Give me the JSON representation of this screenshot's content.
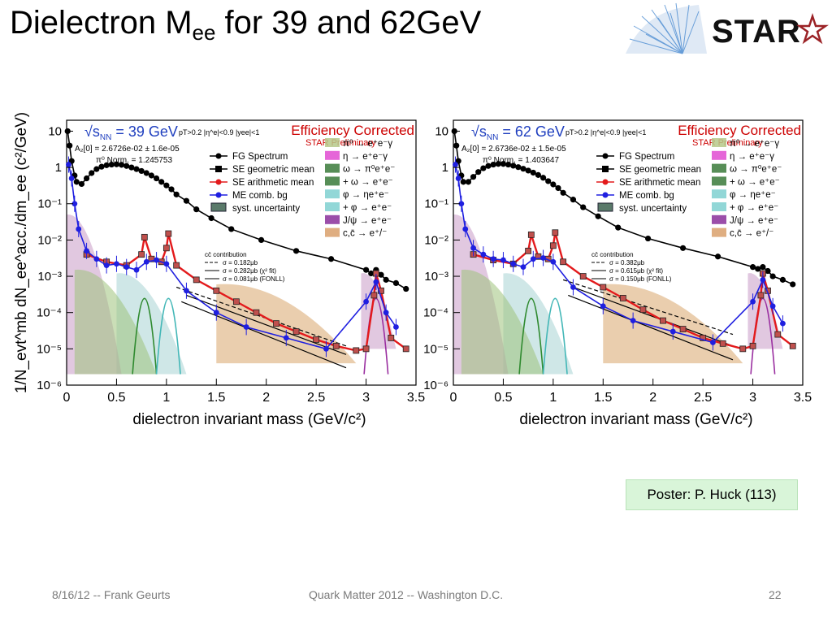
{
  "slide": {
    "title_main": "Dielectron M",
    "title_sub": "ee",
    "title_tail": " for 39 and 62GeV",
    "logo_text": "STAR",
    "poster": "Poster: P. Huck (113)",
    "footer_left": "8/16/12 -- Frank Geurts",
    "footer_center": "Quark Matter 2012 -- Washington D.C.",
    "footer_right": "22"
  },
  "colors": {
    "fg": "#000000",
    "se_arith": "#e31a1c",
    "me": "#1f1fe0",
    "efficiency_title": "#cc0000",
    "star_red": "#9b2226"
  },
  "chart_data": [
    {
      "type": "line",
      "energy_label": "√s",
      "energy_sub": "NN",
      "energy_value": " = 39 GeV",
      "cuts": "pT>0.2  |η^e|<0.9  |yee|<1",
      "fit_line1": "A₂[0] = 2.6726e-02 ± 1.6e-05",
      "fit_line2": "π⁰ Norm. = 1.245753",
      "corner_title": "Efficiency Corrected",
      "prelim": "STAR Preliminary",
      "xlabel": "dielectron invariant mass (GeV/c²)",
      "ylabel": "1/N_evt^mb dN_ee^acc./dm_ee (c²/GeV)",
      "xlim": [
        0,
        3.5
      ],
      "ylim": [
        1e-06,
        20
      ],
      "log_y": true,
      "x_ticks": [
        "0",
        "0.5",
        "1",
        "1.5",
        "2",
        "2.5",
        "3",
        "3.5"
      ],
      "y_ticks": [
        "10",
        "1",
        "10⁻¹",
        "10⁻²",
        "10⁻³",
        "10⁻⁴",
        "10⁻⁵",
        "10⁻⁶"
      ],
      "legend_left": [
        "FG Spectrum",
        "SE geometric mean",
        "SE arithmetic mean",
        "ME comb. bg",
        "syst. uncertainty"
      ],
      "legend_right": [
        "π⁰ → e⁺e⁻γ",
        "η → e⁺e⁻γ",
        "ω → π⁰e⁺e⁻",
        "+ ω → e⁺e⁻",
        "φ → ηe⁺e⁻",
        "+ φ → e⁺e⁻",
        "J/ψ → e⁺e⁻",
        "c,c̄ → e⁺/⁻"
      ],
      "ccbar_title": "cc̄ contribution",
      "ccbar_lines": [
        "σ = 0.182μb",
        "σ = 0.282μb (χ² fit)",
        "σ = 0.081μb (FONLL)"
      ],
      "series": [
        {
          "name": "FG Spectrum",
          "x": [
            0.01,
            0.03,
            0.05,
            0.08,
            0.1,
            0.15,
            0.2,
            0.25,
            0.3,
            0.35,
            0.4,
            0.45,
            0.5,
            0.55,
            0.6,
            0.65,
            0.7,
            0.75,
            0.8,
            0.85,
            0.9,
            0.95,
            1.0,
            1.05,
            1.1,
            1.2,
            1.3,
            1.45,
            1.65,
            1.95,
            2.3,
            2.65,
            3.0,
            3.05,
            3.1,
            3.15,
            3.2,
            3.3,
            3.4
          ],
          "y": [
            10,
            4,
            1.5,
            0.6,
            0.4,
            0.35,
            0.5,
            0.7,
            0.9,
            1.05,
            1.15,
            1.2,
            1.22,
            1.18,
            1.1,
            1.0,
            0.9,
            0.8,
            0.7,
            0.6,
            0.5,
            0.4,
            0.32,
            0.25,
            0.18,
            0.12,
            0.07,
            0.04,
            0.02,
            0.01,
            0.005,
            0.003,
            0.0015,
            0.0012,
            0.0015,
            0.0011,
            0.0008,
            0.00065,
            0.00045
          ]
        },
        {
          "name": "SE arithmetic mean",
          "x": [
            0.2,
            0.4,
            0.6,
            0.75,
            0.78,
            0.85,
            0.95,
            1.0,
            1.02,
            1.1,
            1.3,
            1.5,
            1.7,
            1.9,
            2.1,
            2.3,
            2.5,
            2.7,
            2.9,
            3.0,
            3.08,
            3.1,
            3.15,
            3.25,
            3.4
          ],
          "y": [
            0.004,
            0.0025,
            0.002,
            0.004,
            0.012,
            0.003,
            0.0025,
            0.006,
            0.015,
            0.002,
            0.0008,
            0.0004,
            0.0002,
            0.0001,
            5e-05,
            3e-05,
            1.8e-05,
            1.2e-05,
            9e-06,
            1e-05,
            0.0003,
            0.0012,
            0.0004,
            2e-05,
            1e-05
          ]
        },
        {
          "name": "ME comb. bg",
          "x": [
            0.02,
            0.05,
            0.08,
            0.12,
            0.2,
            0.3,
            0.4,
            0.5,
            0.6,
            0.7,
            0.8,
            0.9,
            1.0,
            1.2,
            1.5,
            1.8,
            2.2,
            2.6,
            3.0,
            3.1,
            3.2,
            3.3
          ],
          "y": [
            1.2,
            0.5,
            0.1,
            0.02,
            0.005,
            0.003,
            0.002,
            0.0022,
            0.0018,
            0.0015,
            0.0025,
            0.0028,
            0.0022,
            0.0004,
            0.0001,
            4e-05,
            2e-05,
            1e-05,
            0.0002,
            0.0007,
            0.0001,
            4e-05
          ]
        }
      ],
      "ccbar_curves": [
        {
          "x": [
            1.1,
            2.8
          ],
          "y": [
            0.0005,
            1.2e-05
          ]
        },
        {
          "x": [
            1.2,
            2.8
          ],
          "y": [
            0.0003,
            7e-06
          ]
        },
        {
          "x": [
            1.15,
            2.8
          ],
          "y": [
            0.0002,
            3e-06
          ]
        }
      ]
    },
    {
      "type": "line",
      "energy_label": "√s",
      "energy_sub": "NN",
      "energy_value": " = 62 GeV",
      "cuts": "pT>0.2  |η^e|<0.9  |yee|<1",
      "fit_line1": "A₂[0] = 2.6736e-02 ± 1.5e-05",
      "fit_line2": "π⁰ Norm. = 1.403647",
      "corner_title": "Efficiency Corrected",
      "prelim": "STAR Preliminary",
      "xlabel": "dielectron invariant mass (GeV/c²)",
      "ylabel": "",
      "xlim": [
        0,
        3.5
      ],
      "ylim": [
        1e-06,
        20
      ],
      "log_y": true,
      "x_ticks": [
        "0",
        "0.5",
        "1",
        "1.5",
        "2",
        "2.5",
        "3",
        "3.5"
      ],
      "y_ticks": [
        "10",
        "1",
        "10⁻¹",
        "10⁻²",
        "10⁻³",
        "10⁻⁴",
        "10⁻⁵",
        "10⁻⁶"
      ],
      "legend_left": [
        "FG Spectrum",
        "SE geometric mean",
        "SE arithmetic mean",
        "ME comb. bg",
        "syst. uncertainty"
      ],
      "legend_right": [
        "π⁰ → e⁺e⁻γ",
        "η → e⁺e⁻γ",
        "ω → π⁰e⁺e⁻",
        "+ ω → e⁺e⁻",
        "φ → ηe⁺e⁻",
        "+ φ → e⁺e⁻",
        "J/ψ → e⁺e⁻",
        "c,c̄ → e⁺/⁻"
      ],
      "ccbar_title": "cc̄ contribution",
      "ccbar_lines": [
        "σ = 0.382μb",
        "σ = 0.615μb (χ² fit)",
        "σ = 0.150μb (FONLL)"
      ],
      "series": [
        {
          "name": "FG Spectrum",
          "x": [
            0.01,
            0.03,
            0.05,
            0.08,
            0.1,
            0.15,
            0.2,
            0.25,
            0.3,
            0.35,
            0.4,
            0.45,
            0.5,
            0.55,
            0.6,
            0.65,
            0.7,
            0.75,
            0.8,
            0.85,
            0.9,
            0.95,
            1.0,
            1.05,
            1.1,
            1.2,
            1.3,
            1.45,
            1.65,
            1.95,
            2.3,
            2.65,
            3.0,
            3.05,
            3.1,
            3.15,
            3.2,
            3.3,
            3.4
          ],
          "y": [
            10,
            4,
            1.5,
            0.6,
            0.4,
            0.4,
            0.55,
            0.75,
            0.95,
            1.1,
            1.2,
            1.25,
            1.25,
            1.2,
            1.12,
            1.02,
            0.92,
            0.82,
            0.72,
            0.62,
            0.52,
            0.42,
            0.34,
            0.27,
            0.2,
            0.13,
            0.08,
            0.045,
            0.022,
            0.011,
            0.006,
            0.0035,
            0.0018,
            0.0016,
            0.0018,
            0.0014,
            0.001,
            0.0008,
            0.0006
          ]
        },
        {
          "name": "SE arithmetic mean",
          "x": [
            0.2,
            0.4,
            0.6,
            0.75,
            0.78,
            0.85,
            0.95,
            1.0,
            1.02,
            1.1,
            1.3,
            1.5,
            1.7,
            1.9,
            2.1,
            2.3,
            2.5,
            2.7,
            2.9,
            3.0,
            3.08,
            3.1,
            3.15,
            3.25,
            3.4
          ],
          "y": [
            0.004,
            0.0028,
            0.0022,
            0.005,
            0.014,
            0.0035,
            0.003,
            0.007,
            0.016,
            0.0025,
            0.001,
            0.0005,
            0.00025,
            0.00012,
            6e-05,
            3.5e-05,
            2e-05,
            1.4e-05,
            1e-05,
            1.2e-05,
            0.0003,
            0.0012,
            0.0004,
            2.5e-05,
            1.2e-05
          ]
        },
        {
          "name": "ME comb. bg",
          "x": [
            0.02,
            0.05,
            0.08,
            0.12,
            0.2,
            0.3,
            0.4,
            0.5,
            0.6,
            0.7,
            0.8,
            0.9,
            1.0,
            1.2,
            1.5,
            1.8,
            2.2,
            2.6,
            3.0,
            3.1,
            3.2,
            3.3
          ],
          "y": [
            1.2,
            0.5,
            0.1,
            0.02,
            0.006,
            0.004,
            0.003,
            0.0028,
            0.0022,
            0.0018,
            0.003,
            0.0032,
            0.0025,
            0.0005,
            0.00015,
            6e-05,
            3e-05,
            1.5e-05,
            0.0002,
            0.0008,
            0.00015,
            5e-05
          ]
        }
      ],
      "ccbar_curves": [
        {
          "x": [
            1.1,
            2.8
          ],
          "y": [
            0.0008,
            2.5e-05
          ]
        },
        {
          "x": [
            1.2,
            2.8
          ],
          "y": [
            0.0005,
            1.2e-05
          ]
        },
        {
          "x": [
            1.15,
            2.8
          ],
          "y": [
            0.0003,
            5e-06
          ]
        }
      ]
    }
  ]
}
